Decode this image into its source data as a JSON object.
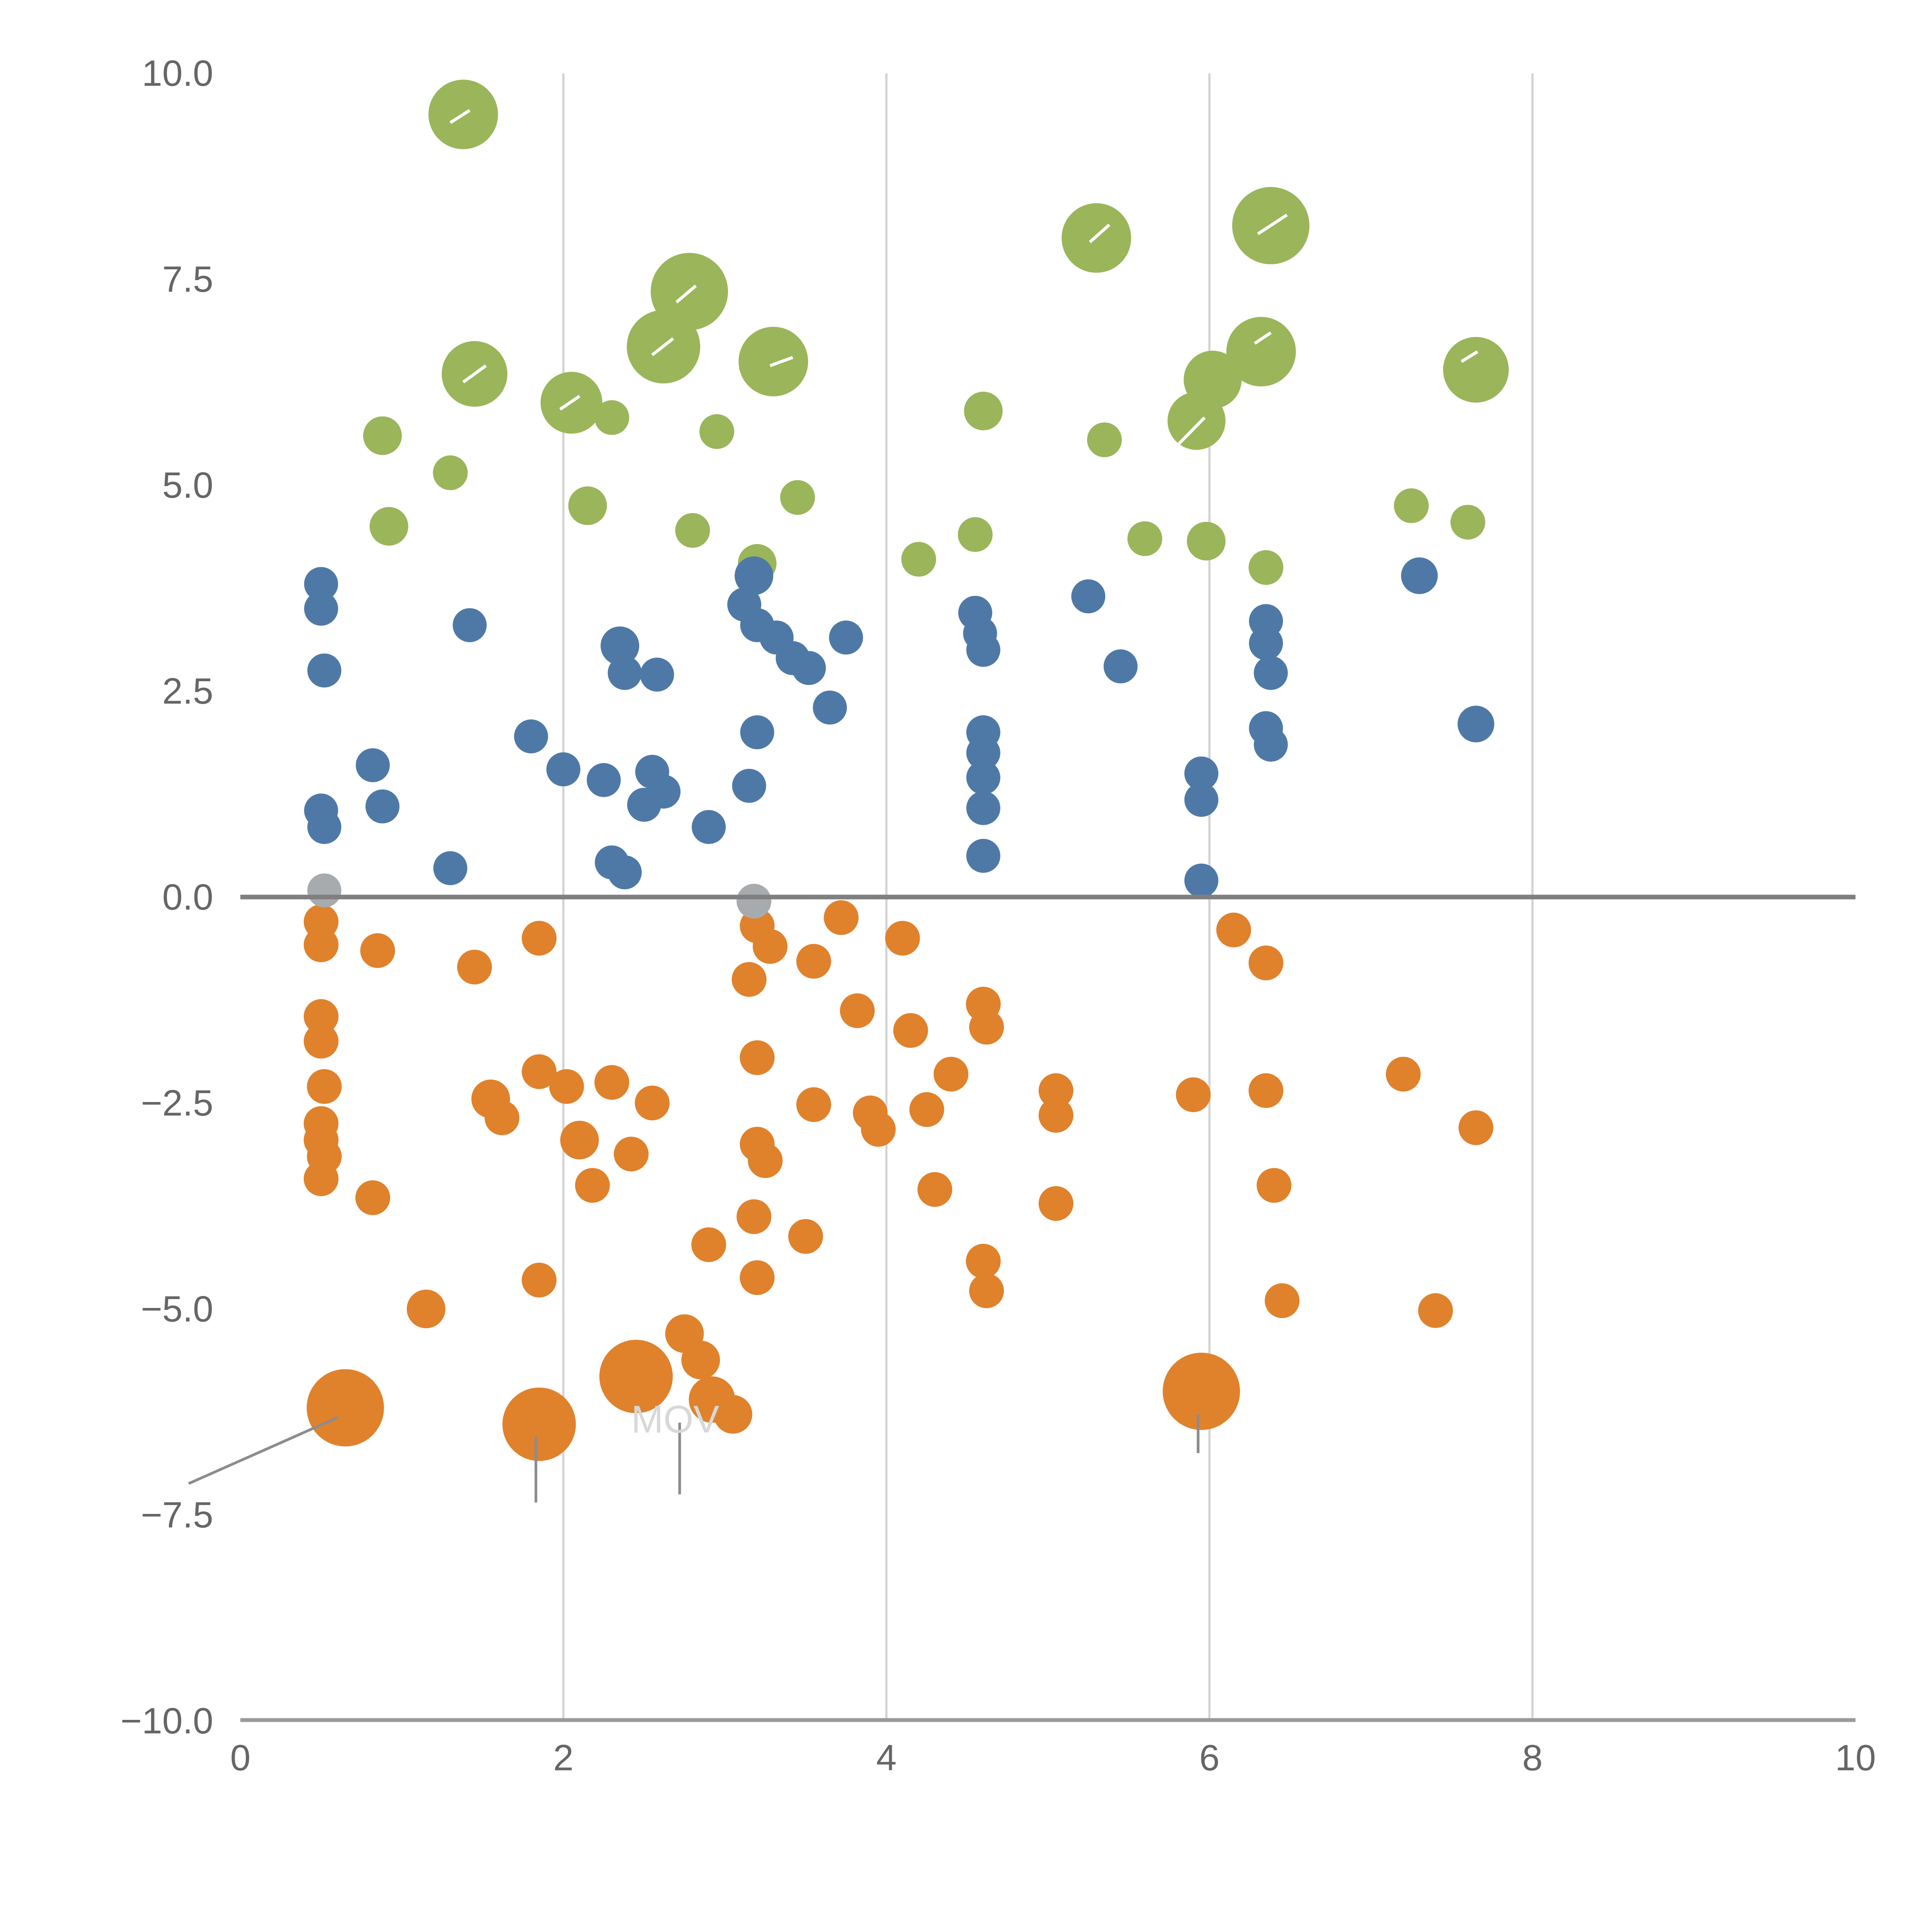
{
  "chart_data": {
    "type": "scatter",
    "title": "",
    "xlabel": "",
    "ylabel": "",
    "xlim": [
      0,
      10
    ],
    "ylim": [
      -10,
      10
    ],
    "x_tick_labels": [
      "0",
      "2",
      "4",
      "6",
      "8",
      "10"
    ],
    "x_tick_values": [
      0,
      2,
      4,
      6,
      8,
      10
    ],
    "y_tick_labels": [
      "10.0",
      "7.5",
      "5.0",
      "2.5",
      "0.0",
      "−2.5",
      "−5.0",
      "−7.5",
      "−10.0"
    ],
    "y_tick_values": [
      10,
      7.5,
      5,
      2.5,
      0,
      -2.5,
      -5,
      -7.5,
      -10
    ],
    "gridlines_x": [
      2,
      4,
      6,
      8
    ],
    "grid_on": true,
    "legend": "none",
    "colors": {
      "grid": "#d2d2d2",
      "axis": "#9a9a9a",
      "zero_line": "#7f7f7f",
      "tick_label": "#666666",
      "annotation_line": "#8c8c8c",
      "annotation_text": "#d8d8d8",
      "white_tick": "#ffffff"
    },
    "series": [
      {
        "name": "green",
        "color": "#9bb55a",
        "points": [
          [
            1.38,
            9.5,
            18
          ],
          [
            5.3,
            8.0,
            18
          ],
          [
            6.38,
            8.15,
            20
          ],
          [
            2.78,
            7.35,
            20
          ],
          [
            2.62,
            6.68,
            19
          ],
          [
            3.3,
            6.5,
            18
          ],
          [
            1.45,
            6.35,
            17
          ],
          [
            7.65,
            6.4,
            17
          ],
          [
            6.32,
            6.62,
            18
          ],
          [
            6.02,
            6.28,
            15
          ],
          [
            5.92,
            5.78,
            15
          ],
          [
            2.05,
            6.0,
            16
          ],
          [
            2.3,
            5.82,
            9
          ],
          [
            4.6,
            5.9,
            10
          ],
          [
            5.35,
            5.55,
            9
          ],
          [
            0.88,
            5.6,
            10
          ],
          [
            1.3,
            5.15,
            9
          ],
          [
            2.95,
            5.65,
            9
          ],
          [
            3.45,
            4.85,
            9
          ],
          [
            2.15,
            4.75,
            10
          ],
          [
            0.92,
            4.5,
            10
          ],
          [
            2.8,
            4.45,
            9
          ],
          [
            4.2,
            4.1,
            9
          ],
          [
            4.55,
            4.4,
            9
          ],
          [
            5.6,
            4.35,
            9
          ],
          [
            5.98,
            4.32,
            10
          ],
          [
            6.35,
            4.0,
            9
          ],
          [
            7.25,
            4.75,
            9
          ],
          [
            7.6,
            4.55,
            9
          ],
          [
            3.2,
            4.05,
            10
          ]
        ]
      },
      {
        "name": "blue",
        "color": "#4e79a7",
        "points": [
          [
            0.5,
            3.8,
            8.8
          ],
          [
            0.5,
            3.5,
            8.8
          ],
          [
            0.52,
            2.75,
            8.8
          ],
          [
            1.42,
            3.3,
            8.8
          ],
          [
            3.18,
            3.9,
            10
          ],
          [
            3.12,
            3.55,
            8.8
          ],
          [
            3.2,
            3.3,
            8.8
          ],
          [
            3.32,
            3.15,
            8.8
          ],
          [
            3.42,
            2.9,
            8.8
          ],
          [
            3.52,
            2.78,
            8.8
          ],
          [
            3.75,
            3.15,
            8.8
          ],
          [
            2.35,
            3.05,
            10
          ],
          [
            2.38,
            2.72,
            8.8
          ],
          [
            2.58,
            2.7,
            8.8
          ],
          [
            4.55,
            3.45,
            8.8
          ],
          [
            4.58,
            3.2,
            8.8
          ],
          [
            4.6,
            3.0,
            8.8
          ],
          [
            5.25,
            3.65,
            8.8
          ],
          [
            5.45,
            2.8,
            8.8
          ],
          [
            6.35,
            3.35,
            8.8
          ],
          [
            6.35,
            3.08,
            8.8
          ],
          [
            6.38,
            2.72,
            8.8
          ],
          [
            6.35,
            2.05,
            8.8
          ],
          [
            6.38,
            1.85,
            8.8
          ],
          [
            7.3,
            3.9,
            9.5
          ],
          [
            7.65,
            2.1,
            9.5
          ],
          [
            3.65,
            2.3,
            8.8
          ],
          [
            3.2,
            2.0,
            8.8
          ],
          [
            1.8,
            1.95,
            8.8
          ],
          [
            2.0,
            1.55,
            8.8
          ],
          [
            2.25,
            1.42,
            8.8
          ],
          [
            2.55,
            1.52,
            8.8
          ],
          [
            2.62,
            1.28,
            8.8
          ],
          [
            2.5,
            1.12,
            8.8
          ],
          [
            2.9,
            0.85,
            8.8
          ],
          [
            3.15,
            1.35,
            8.8
          ],
          [
            4.6,
            2.0,
            8.8
          ],
          [
            4.6,
            1.75,
            8.8
          ],
          [
            4.6,
            1.45,
            8.8
          ],
          [
            4.6,
            1.08,
            8.8
          ],
          [
            5.95,
            1.5,
            8.8
          ],
          [
            5.95,
            1.18,
            8.8
          ],
          [
            4.6,
            0.5,
            8.8
          ],
          [
            5.95,
            0.2,
            8.8
          ],
          [
            0.5,
            1.05,
            8.8
          ],
          [
            0.52,
            0.85,
            8.8
          ],
          [
            0.82,
            1.6,
            8.8
          ],
          [
            0.88,
            1.1,
            8.8
          ],
          [
            1.3,
            0.35,
            8.8
          ],
          [
            2.3,
            0.42,
            8.8
          ],
          [
            2.38,
            0.3,
            8.8
          ]
        ]
      },
      {
        "name": "orange",
        "color": "#e0812c",
        "points": [
          [
            0.5,
            -0.3,
            9
          ],
          [
            0.5,
            -0.58,
            9
          ],
          [
            0.85,
            -0.65,
            9
          ],
          [
            1.45,
            -0.85,
            9
          ],
          [
            1.85,
            -0.5,
            9
          ],
          [
            3.2,
            -0.35,
            9
          ],
          [
            3.28,
            -0.6,
            9
          ],
          [
            3.15,
            -1.0,
            9
          ],
          [
            3.55,
            -0.78,
            9
          ],
          [
            3.72,
            -0.25,
            9
          ],
          [
            4.1,
            -0.5,
            9
          ],
          [
            6.15,
            -0.4,
            9
          ],
          [
            6.35,
            -0.8,
            9
          ],
          [
            4.6,
            -1.3,
            9
          ],
          [
            4.62,
            -1.58,
            9
          ],
          [
            4.15,
            -1.62,
            9
          ],
          [
            3.82,
            -1.38,
            9
          ],
          [
            0.5,
            -1.45,
            9
          ],
          [
            0.5,
            -1.75,
            9
          ],
          [
            0.52,
            -2.3,
            9
          ],
          [
            0.5,
            -2.75,
            9
          ],
          [
            0.5,
            -2.95,
            9
          ],
          [
            0.52,
            -3.15,
            9
          ],
          [
            0.5,
            -3.42,
            9
          ],
          [
            0.82,
            -3.65,
            9
          ],
          [
            1.55,
            -2.45,
            10
          ],
          [
            1.62,
            -2.68,
            9
          ],
          [
            1.85,
            -2.12,
            9
          ],
          [
            2.02,
            -2.3,
            9
          ],
          [
            2.3,
            -2.25,
            9
          ],
          [
            2.55,
            -2.5,
            9
          ],
          [
            2.1,
            -2.95,
            10
          ],
          [
            2.18,
            -3.5,
            9
          ],
          [
            2.42,
            -3.12,
            9
          ],
          [
            3.2,
            -1.95,
            9
          ],
          [
            3.2,
            -3.0,
            9
          ],
          [
            3.25,
            -3.2,
            9
          ],
          [
            3.55,
            -2.52,
            9
          ],
          [
            3.9,
            -2.62,
            9
          ],
          [
            3.95,
            -2.82,
            9
          ],
          [
            4.25,
            -2.58,
            9
          ],
          [
            4.4,
            -2.15,
            9
          ],
          [
            5.05,
            -2.35,
            9
          ],
          [
            5.05,
            -2.65,
            9
          ],
          [
            5.9,
            -2.4,
            9
          ],
          [
            6.35,
            -2.35,
            9
          ],
          [
            7.2,
            -2.15,
            9
          ],
          [
            7.65,
            -2.8,
            9
          ],
          [
            4.3,
            -3.55,
            9
          ],
          [
            5.05,
            -3.72,
            9
          ],
          [
            3.18,
            -3.88,
            9
          ],
          [
            3.5,
            -4.12,
            9
          ],
          [
            2.9,
            -4.22,
            9
          ],
          [
            3.2,
            -4.62,
            9
          ],
          [
            4.6,
            -4.42,
            9
          ],
          [
            4.62,
            -4.78,
            9
          ],
          [
            6.4,
            -3.5,
            9
          ],
          [
            6.45,
            -4.9,
            9
          ],
          [
            7.4,
            -5.02,
            9
          ],
          [
            1.15,
            -5.0,
            10
          ],
          [
            1.85,
            -4.65,
            9
          ],
          [
            2.75,
            -5.3,
            10
          ],
          [
            2.85,
            -5.62,
            10
          ],
          [
            2.45,
            -5.82,
            19
          ],
          [
            2.92,
            -6.1,
            12
          ],
          [
            3.05,
            -6.28,
            10
          ],
          [
            0.65,
            -6.2,
            20
          ],
          [
            1.85,
            -6.4,
            19
          ],
          [
            5.95,
            -6.0,
            20
          ]
        ]
      },
      {
        "name": "gray",
        "color": "#a8abae",
        "points": [
          [
            0.52,
            0.08,
            8.8
          ],
          [
            3.18,
            -0.05,
            9
          ]
        ]
      }
    ],
    "annotations": {
      "text": [
        {
          "label": "MOV",
          "x": 2.42,
          "y": -6.5,
          "size": 20
        }
      ],
      "gray_lines": [
        [
          -0.32,
          -7.12,
          0.6,
          -6.32
        ],
        [
          1.83,
          -6.55,
          1.83,
          -7.35
        ],
        [
          2.72,
          -6.38,
          2.72,
          -7.25
        ],
        [
          5.93,
          -6.28,
          5.93,
          -6.75
        ]
      ],
      "white_ticks": [
        [
          1.3,
          9.4,
          1.42,
          9.55
        ],
        [
          5.26,
          7.95,
          5.38,
          8.16
        ],
        [
          6.3,
          8.05,
          6.48,
          8.28
        ],
        [
          2.7,
          7.22,
          2.82,
          7.42
        ],
        [
          2.55,
          6.58,
          2.68,
          6.78
        ],
        [
          1.38,
          6.25,
          1.52,
          6.45
        ],
        [
          3.28,
          6.45,
          3.42,
          6.55
        ],
        [
          5.8,
          5.48,
          5.97,
          5.82
        ],
        [
          6.28,
          6.72,
          6.38,
          6.85
        ],
        [
          7.56,
          6.5,
          7.66,
          6.62
        ],
        [
          1.98,
          5.92,
          2.1,
          6.08
        ]
      ]
    }
  }
}
